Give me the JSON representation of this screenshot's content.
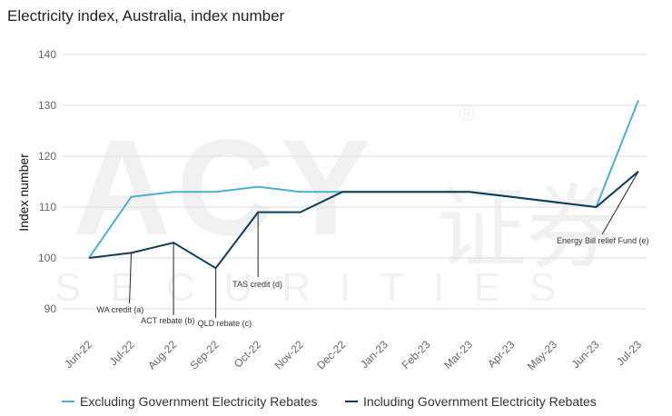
{
  "title": "Electricity index, Australia, index number",
  "watermark": {
    "brand": "ACY",
    "cn": "证券",
    "sub": "SECURITIES",
    "reg": "®"
  },
  "colors": {
    "excluding": "#4bb0d1",
    "including": "#0e3b55",
    "grid": "#dedede"
  },
  "legend": {
    "excluding_label": "Excluding Government Electricity Rebates",
    "including_label": "Including Government Electricity Rebates"
  },
  "chart_data": {
    "type": "line",
    "title": "Electricity index, Australia, index number",
    "xlabel": "",
    "ylabel": "Index number",
    "ylim": [
      85,
      140
    ],
    "yticks": [
      90,
      100,
      110,
      120,
      130,
      140
    ],
    "grid": true,
    "legend_position": "bottom",
    "categories": [
      "Jun-22",
      "Jul-22",
      "Aug-22",
      "Sep-22",
      "Oct-22",
      "Nov-22",
      "Dec-22",
      "Jan-23",
      "Feb-23",
      "Mar-23",
      "Apr-23",
      "May-23",
      "Jun-23",
      "Jul-23"
    ],
    "series": [
      {
        "name": "Excluding Government Electricity Rebates",
        "color": "#4bb0d1",
        "values": [
          100,
          112,
          113,
          113,
          114,
          113,
          113,
          113,
          113,
          113,
          112,
          111,
          110,
          131
        ]
      },
      {
        "name": "Including Government Electricity Rebates",
        "color": "#0e3b55",
        "values": [
          100,
          101,
          103,
          98,
          109,
          109,
          113,
          113,
          113,
          113,
          112,
          111,
          110,
          117
        ]
      }
    ],
    "annotations": [
      {
        "text": "WA credit (a)",
        "index": 1,
        "value": 101
      },
      {
        "text": "ACT rebate (b)",
        "index": 2,
        "value": 103
      },
      {
        "text": "QLD rebate (c)",
        "index": 3,
        "value": 98
      },
      {
        "text": "TAS credit (d)",
        "index": 4,
        "value": 109
      },
      {
        "text": "Energy Bill relief Fund (e)",
        "index": 13,
        "value": 117
      }
    ]
  }
}
